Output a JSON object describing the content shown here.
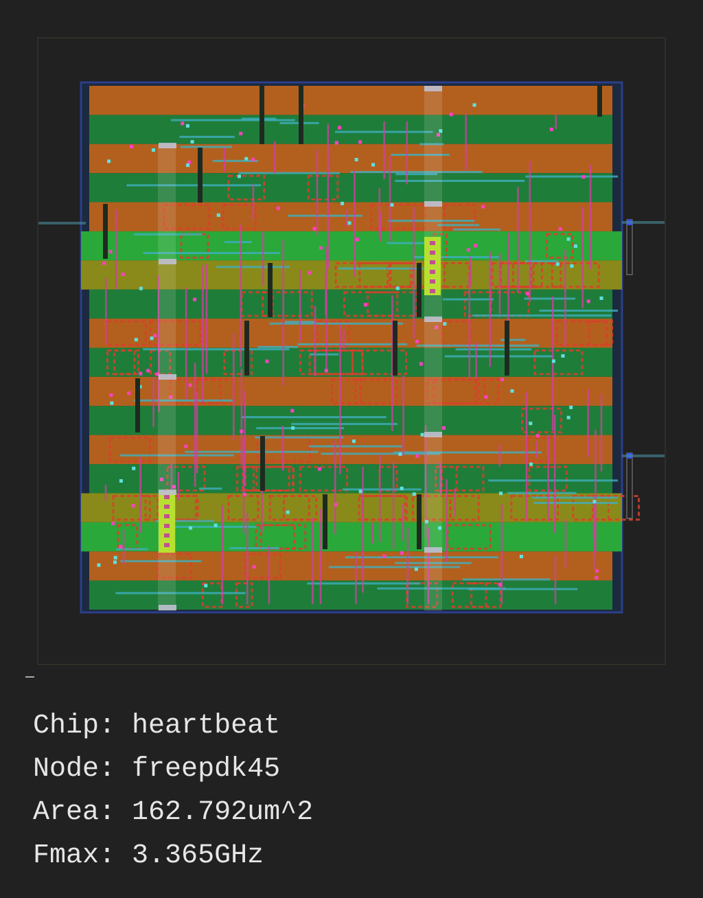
{
  "info": [
    {
      "label": "Chip:",
      "value": "heartbeat"
    },
    {
      "label": "Node:",
      "value": "freepdk45"
    },
    {
      "label": "Area:",
      "value": "162.792um^2"
    },
    {
      "label": "Fmax:",
      "value": "3.365GHz"
    }
  ]
}
